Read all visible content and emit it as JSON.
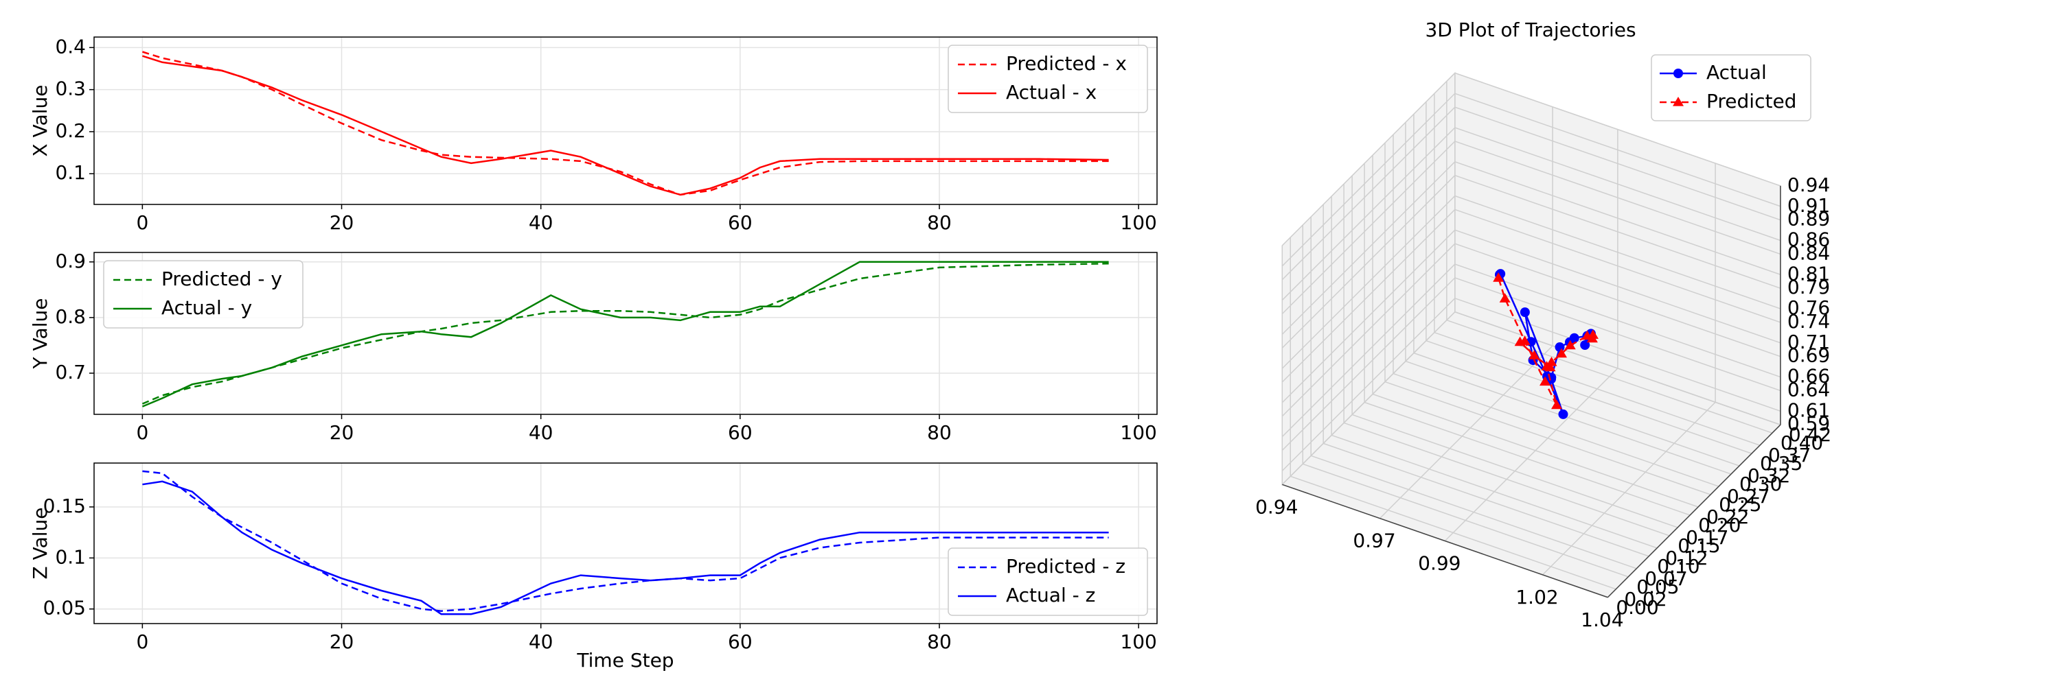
{
  "chart_data": [
    {
      "type": "line",
      "ylabel": "X Value",
      "x": [
        0,
        2,
        5,
        8,
        10,
        13,
        16,
        20,
        24,
        28,
        30,
        33,
        36,
        41,
        44,
        48,
        51,
        54,
        57,
        60,
        62,
        64,
        68,
        72,
        80,
        90,
        97
      ],
      "series": [
        {
          "name": "Predicted - x",
          "color": "#ff0000",
          "linestyle": "dashed",
          "values": [
            0.39,
            0.375,
            0.36,
            0.345,
            0.33,
            0.3,
            0.265,
            0.22,
            0.18,
            0.155,
            0.145,
            0.14,
            0.138,
            0.135,
            0.13,
            0.105,
            0.075,
            0.05,
            0.06,
            0.085,
            0.1,
            0.115,
            0.128,
            0.13,
            0.13,
            0.13,
            0.13
          ]
        },
        {
          "name": "Actual - x",
          "color": "#ff0000",
          "linestyle": "solid",
          "values": [
            0.38,
            0.365,
            0.355,
            0.345,
            0.33,
            0.305,
            0.275,
            0.24,
            0.2,
            0.16,
            0.14,
            0.125,
            0.135,
            0.155,
            0.14,
            0.1,
            0.07,
            0.05,
            0.065,
            0.09,
            0.115,
            0.13,
            0.135,
            0.135,
            0.135,
            0.135,
            0.133
          ]
        }
      ],
      "xlim": [
        -4.85,
        101.85
      ],
      "ylim": [
        0.027,
        0.425
      ],
      "xticks": [
        0,
        20,
        40,
        60,
        80,
        100
      ],
      "yticks": [
        0.1,
        0.2,
        0.3,
        0.4
      ],
      "grid": true,
      "legend": "upper right"
    },
    {
      "type": "line",
      "ylabel": "Y Value",
      "x": [
        0,
        2,
        5,
        8,
        10,
        13,
        16,
        20,
        24,
        28,
        30,
        33,
        36,
        41,
        44,
        48,
        51,
        54,
        57,
        60,
        62,
        64,
        68,
        72,
        80,
        90,
        97
      ],
      "series": [
        {
          "name": "Predicted - y",
          "color": "#008000",
          "linestyle": "dashed",
          "values": [
            0.645,
            0.66,
            0.675,
            0.685,
            0.695,
            0.71,
            0.725,
            0.745,
            0.76,
            0.775,
            0.78,
            0.79,
            0.795,
            0.81,
            0.812,
            0.812,
            0.81,
            0.805,
            0.8,
            0.805,
            0.815,
            0.83,
            0.85,
            0.87,
            0.89,
            0.895,
            0.897
          ]
        },
        {
          "name": "Actual - y",
          "color": "#008000",
          "linestyle": "solid",
          "values": [
            0.64,
            0.655,
            0.68,
            0.69,
            0.695,
            0.71,
            0.73,
            0.75,
            0.77,
            0.775,
            0.77,
            0.765,
            0.79,
            0.84,
            0.815,
            0.8,
            0.8,
            0.795,
            0.81,
            0.81,
            0.82,
            0.82,
            0.86,
            0.9,
            0.9,
            0.9,
            0.9
          ]
        }
      ],
      "xlim": [
        -4.85,
        101.85
      ],
      "ylim": [
        0.626,
        0.917
      ],
      "xticks": [
        0,
        20,
        40,
        60,
        80,
        100
      ],
      "yticks": [
        0.7,
        0.8,
        0.9
      ],
      "grid": true,
      "legend": "upper left"
    },
    {
      "type": "line",
      "ylabel": "Z Value",
      "xlabel": "Time Step",
      "x": [
        0,
        2,
        5,
        8,
        10,
        13,
        16,
        20,
        24,
        28,
        30,
        33,
        36,
        41,
        44,
        48,
        51,
        54,
        57,
        60,
        62,
        64,
        68,
        72,
        80,
        90,
        97
      ],
      "series": [
        {
          "name": "Predicted - z",
          "color": "#0000ff",
          "linestyle": "dashed",
          "values": [
            0.185,
            0.183,
            0.16,
            0.14,
            0.13,
            0.115,
            0.098,
            0.075,
            0.06,
            0.05,
            0.048,
            0.05,
            0.055,
            0.065,
            0.07,
            0.075,
            0.078,
            0.08,
            0.078,
            0.08,
            0.09,
            0.1,
            0.11,
            0.115,
            0.12,
            0.12,
            0.12
          ]
        },
        {
          "name": "Actual - z",
          "color": "#0000ff",
          "linestyle": "solid",
          "values": [
            0.172,
            0.175,
            0.165,
            0.14,
            0.125,
            0.108,
            0.095,
            0.08,
            0.068,
            0.058,
            0.045,
            0.045,
            0.052,
            0.075,
            0.083,
            0.08,
            0.078,
            0.08,
            0.083,
            0.083,
            0.095,
            0.105,
            0.118,
            0.125,
            0.125,
            0.125,
            0.125
          ]
        }
      ],
      "xlim": [
        -4.85,
        101.85
      ],
      "ylim": [
        0.0357,
        0.193
      ],
      "xticks": [
        0,
        20,
        40,
        60,
        80,
        100
      ],
      "yticks": [
        0.05,
        0.1,
        0.15
      ],
      "grid": true,
      "legend": "lower right"
    },
    {
      "type": "scatter3d",
      "title": "3D Plot of Trajectories",
      "series": [
        {
          "name": "Actual",
          "color": "#0000ff",
          "linestyle": "solid",
          "marker": "circle",
          "x": [
            0.985,
            0.99,
            0.992,
            0.995,
            0.998,
            1.0,
            1.005,
            1.0,
            0.995,
            1.01,
            1.02,
            1.01,
            1.0,
            0.99,
            0.99
          ],
          "y": [
            0.38,
            0.355,
            0.33,
            0.275,
            0.24,
            0.2,
            0.14,
            0.135,
            0.155,
            0.1,
            0.05,
            0.09,
            0.13,
            0.135,
            0.133
          ],
          "z": [
            0.64,
            0.68,
            0.695,
            0.73,
            0.75,
            0.77,
            0.77,
            0.79,
            0.84,
            0.8,
            0.795,
            0.81,
            0.82,
            0.9,
            0.9
          ]
        },
        {
          "name": "Predicted",
          "color": "#ff0000",
          "linestyle": "dashed",
          "marker": "triangle",
          "x": [
            0.986,
            0.99,
            0.992,
            0.995,
            0.998,
            1.0,
            1.004,
            1.0,
            0.996,
            1.008,
            1.018,
            1.01,
            1.0,
            0.992,
            0.99
          ],
          "y": [
            0.39,
            0.36,
            0.33,
            0.265,
            0.22,
            0.18,
            0.145,
            0.138,
            0.135,
            0.105,
            0.05,
            0.085,
            0.115,
            0.13,
            0.13
          ],
          "z": [
            0.645,
            0.675,
            0.695,
            0.725,
            0.745,
            0.76,
            0.78,
            0.795,
            0.81,
            0.812,
            0.805,
            0.805,
            0.83,
            0.87,
            0.897
          ]
        }
      ],
      "xlim": [
        0.94,
        1.04
      ],
      "ylim": [
        0,
        0.42
      ],
      "zlim": [
        0.59,
        0.94
      ],
      "xticks": [
        0.94,
        0.97,
        0.99,
        1.02,
        1.04
      ],
      "yticks": [
        {
          "value": 0,
          "label": "0.00"
        },
        0.02,
        0.05,
        0.07,
        {
          "value": 0.1,
          "label": "0.10"
        },
        0.12,
        0.15,
        0.17,
        {
          "value": 0.2,
          "label": "0.20"
        },
        0.22,
        0.25,
        0.27,
        {
          "value": 0.3,
          "label": "0.30"
        },
        0.32,
        0.35,
        0.37,
        {
          "value": 0.4,
          "label": "0.40"
        },
        0.42
      ],
      "zticks": [
        0.59,
        0.61,
        0.64,
        0.66,
        0.69,
        0.71,
        0.74,
        0.76,
        0.79,
        0.81,
        0.84,
        0.86,
        0.89,
        0.91,
        0.94
      ],
      "grid": true,
      "legend": "upper right"
    }
  ]
}
